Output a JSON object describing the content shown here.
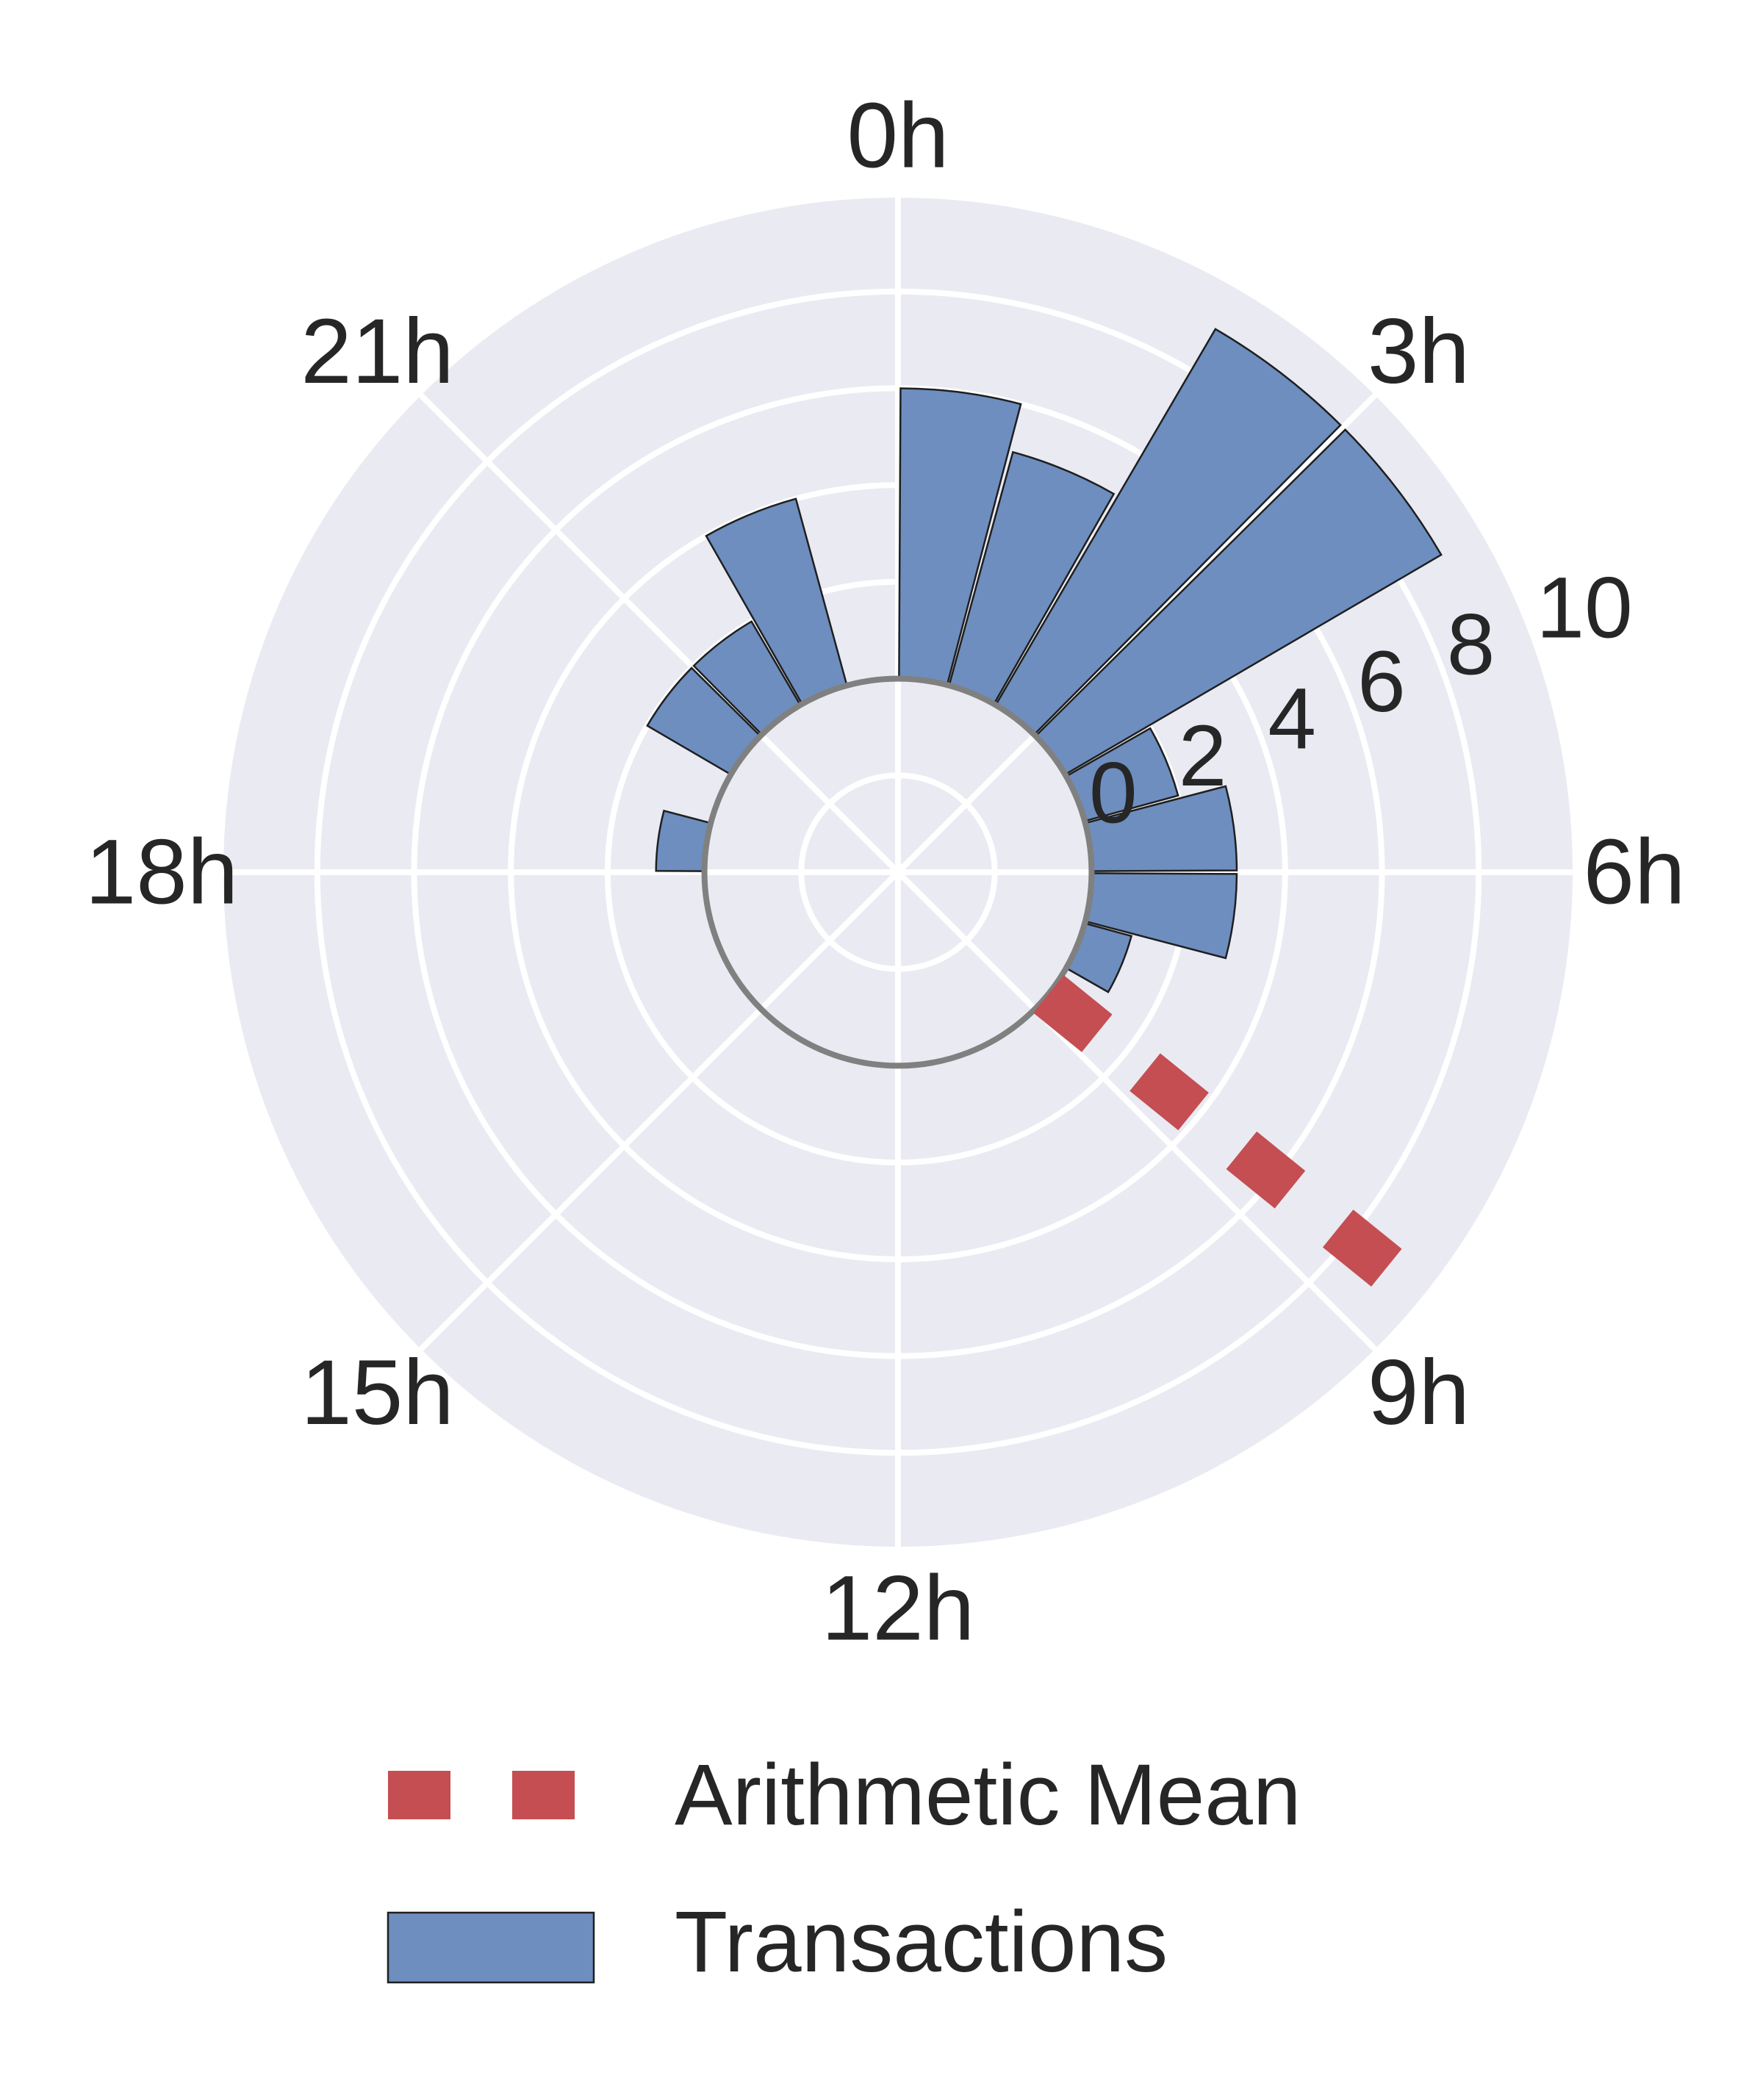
{
  "chart_data": {
    "type": "bar",
    "subtype": "polar-histogram",
    "title": "",
    "angle_tick_labels": [
      "0h",
      "3h",
      "6h",
      "9h",
      "12h",
      "15h",
      "18h",
      "21h"
    ],
    "radial_tick_labels": [
      "0",
      "2",
      "4",
      "6",
      "8",
      "10"
    ],
    "radial_ticks": [
      0,
      2,
      4,
      6,
      8,
      10
    ],
    "rlim": [
      -4,
      10
    ],
    "grid": true,
    "direction": "clockwise",
    "zero_location": "top",
    "series": [
      {
        "name": "Transactions",
        "color": "#6d8ebf",
        "bin_width_hours": 1,
        "bins": [
          {
            "hour_start": 0,
            "value": 6
          },
          {
            "hour_start": 1,
            "value": 5
          },
          {
            "hour_start": 2,
            "value": 9
          },
          {
            "hour_start": 3,
            "value": 9
          },
          {
            "hour_start": 4,
            "value": 2
          },
          {
            "hour_start": 5,
            "value": 3
          },
          {
            "hour_start": 6,
            "value": 3
          },
          {
            "hour_start": 7,
            "value": 1
          },
          {
            "hour_start": 18,
            "value": 1
          },
          {
            "hour_start": 20,
            "value": 2
          },
          {
            "hour_start": 21,
            "value": 2
          },
          {
            "hour_start": 22,
            "value": 4
          }
        ]
      },
      {
        "name": "Arithmetic Mean",
        "type": "line",
        "style": "dashed",
        "color": "#c44e52",
        "angle_hours": 8.6
      }
    ],
    "legend": {
      "placement": "bottom-center",
      "entries": [
        "Arithmetic Mean",
        "Transactions"
      ]
    },
    "colors": {
      "plot_background": "#eaeaf2",
      "grid": "#ffffff",
      "zero_circle": "#808080",
      "bar_edge": "#1f1f1f"
    }
  }
}
